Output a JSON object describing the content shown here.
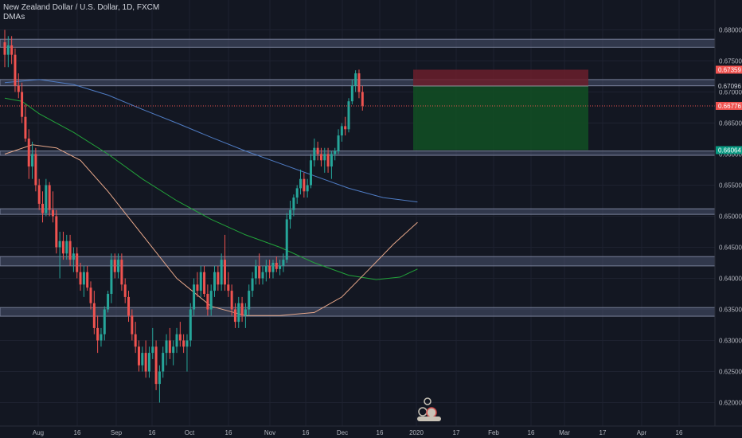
{
  "header": {
    "symbol_line": "New Zealand Dollar / U.S. Dollar, 1D, FXCM",
    "indicator": "DMAs"
  },
  "colors": {
    "background": "#131722",
    "up": "#26a69a",
    "down": "#ef5350",
    "zone_fill": "#4a5470",
    "zone_border": "#8d95b0",
    "ma200": "#4f7cc4",
    "ma100": "#22a33a",
    "ma50": "#e8a88a",
    "stop_fill": "#6b1f2c",
    "target_fill": "#124d24",
    "last_price_bg": "#ef5350",
    "target_bg": "#089981"
  },
  "chart_data": {
    "type": "candlestick",
    "ylim": [
      0.6175,
      0.6825
    ],
    "y_ticks": [
      "0.68000",
      "0.67500",
      "0.67000",
      "0.66500",
      "0.66000",
      "0.65500",
      "0.65000",
      "0.64500",
      "0.64000",
      "0.63500",
      "0.63000",
      "0.62500",
      "0.62000"
    ],
    "x_ticks": [
      "Aug",
      "16",
      "Sep",
      "16",
      "Oct",
      "16",
      "Nov",
      "16",
      "Dec",
      "16",
      "2020",
      "17",
      "Feb",
      "16",
      "Mar",
      "17",
      "Apr",
      "16"
    ],
    "price_badges": {
      "stop": "0.67359",
      "entry": "0.67096",
      "last": "0.66776",
      "target": "0.66064"
    },
    "zones": [
      [
        0.6772,
        0.6785
      ],
      [
        0.671,
        0.672
      ],
      [
        0.6598,
        0.6605
      ],
      [
        0.6503,
        0.6512
      ],
      [
        0.642,
        0.6435
      ],
      [
        0.6339,
        0.6353
      ]
    ],
    "ohlc": [
      [
        0.678,
        0.68,
        0.674,
        0.676
      ],
      [
        0.676,
        0.679,
        0.674,
        0.6775
      ],
      [
        0.6775,
        0.679,
        0.6745,
        0.676
      ],
      [
        0.676,
        0.677,
        0.67,
        0.671
      ],
      [
        0.671,
        0.673,
        0.669,
        0.67
      ],
      [
        0.67,
        0.6715,
        0.665,
        0.666
      ],
      [
        0.666,
        0.668,
        0.662,
        0.6625
      ],
      [
        0.6625,
        0.664,
        0.656,
        0.658
      ],
      [
        0.658,
        0.662,
        0.656,
        0.66
      ],
      [
        0.66,
        0.661,
        0.654,
        0.655
      ],
      [
        0.655,
        0.656,
        0.651,
        0.652
      ],
      [
        0.652,
        0.654,
        0.649,
        0.6505
      ],
      [
        0.6505,
        0.656,
        0.65,
        0.655
      ],
      [
        0.655,
        0.6555,
        0.65,
        0.651
      ],
      [
        0.651,
        0.654,
        0.649,
        0.65
      ],
      [
        0.65,
        0.651,
        0.644,
        0.645
      ],
      [
        0.645,
        0.6475,
        0.64,
        0.646
      ],
      [
        0.646,
        0.6475,
        0.643,
        0.644
      ],
      [
        0.644,
        0.647,
        0.643,
        0.646
      ],
      [
        0.646,
        0.647,
        0.642,
        0.643
      ],
      [
        0.643,
        0.645,
        0.641,
        0.644
      ],
      [
        0.644,
        0.645,
        0.64,
        0.641
      ],
      [
        0.641,
        0.6425,
        0.638,
        0.639
      ],
      [
        0.639,
        0.642,
        0.637,
        0.641
      ],
      [
        0.641,
        0.642,
        0.638,
        0.6385
      ],
      [
        0.6385,
        0.6395,
        0.635,
        0.636
      ],
      [
        0.636,
        0.638,
        0.631,
        0.632
      ],
      [
        0.632,
        0.634,
        0.628,
        0.63
      ],
      [
        0.63,
        0.632,
        0.629,
        0.631
      ],
      [
        0.631,
        0.6355,
        0.63,
        0.635
      ],
      [
        0.635,
        0.638,
        0.6345,
        0.6375
      ],
      [
        0.6375,
        0.644,
        0.636,
        0.643
      ],
      [
        0.643,
        0.644,
        0.64,
        0.641
      ],
      [
        0.641,
        0.644,
        0.64,
        0.643
      ],
      [
        0.643,
        0.644,
        0.638,
        0.639
      ],
      [
        0.639,
        0.64,
        0.636,
        0.637
      ],
      [
        0.637,
        0.638,
        0.633,
        0.634
      ],
      [
        0.634,
        0.635,
        0.63,
        0.631
      ],
      [
        0.631,
        0.633,
        0.628,
        0.629
      ],
      [
        0.629,
        0.63,
        0.625,
        0.626
      ],
      [
        0.626,
        0.629,
        0.625,
        0.628
      ],
      [
        0.628,
        0.63,
        0.624,
        0.625
      ],
      [
        0.625,
        0.629,
        0.624,
        0.628
      ],
      [
        0.628,
        0.632,
        0.627,
        0.629
      ],
      [
        0.629,
        0.63,
        0.622,
        0.623
      ],
      [
        0.623,
        0.626,
        0.62,
        0.625
      ],
      [
        0.625,
        0.629,
        0.624,
        0.628
      ],
      [
        0.628,
        0.631,
        0.626,
        0.63
      ],
      [
        0.63,
        0.632,
        0.627,
        0.628
      ],
      [
        0.628,
        0.63,
        0.626,
        0.629
      ],
      [
        0.629,
        0.632,
        0.628,
        0.631
      ],
      [
        0.631,
        0.633,
        0.629,
        0.63
      ],
      [
        0.63,
        0.631,
        0.628,
        0.629
      ],
      [
        0.629,
        0.631,
        0.625,
        0.63
      ],
      [
        0.63,
        0.636,
        0.629,
        0.635
      ],
      [
        0.635,
        0.64,
        0.634,
        0.639
      ],
      [
        0.639,
        0.641,
        0.637,
        0.638
      ],
      [
        0.638,
        0.642,
        0.637,
        0.641
      ],
      [
        0.641,
        0.642,
        0.637,
        0.6375
      ],
      [
        0.6375,
        0.639,
        0.634,
        0.635
      ],
      [
        0.635,
        0.639,
        0.634,
        0.638
      ],
      [
        0.638,
        0.642,
        0.637,
        0.641
      ],
      [
        0.641,
        0.642,
        0.638,
        0.639
      ],
      [
        0.639,
        0.644,
        0.638,
        0.643
      ],
      [
        0.643,
        0.647,
        0.638,
        0.639
      ],
      [
        0.639,
        0.641,
        0.637,
        0.638
      ],
      [
        0.638,
        0.639,
        0.634,
        0.635
      ],
      [
        0.635,
        0.636,
        0.632,
        0.633
      ],
      [
        0.633,
        0.637,
        0.632,
        0.636
      ],
      [
        0.636,
        0.637,
        0.633,
        0.634
      ],
      [
        0.634,
        0.636,
        0.632,
        0.635
      ],
      [
        0.635,
        0.639,
        0.634,
        0.638
      ],
      [
        0.638,
        0.641,
        0.637,
        0.64
      ],
      [
        0.64,
        0.643,
        0.639,
        0.642
      ],
      [
        0.642,
        0.644,
        0.639,
        0.64
      ],
      [
        0.64,
        0.642,
        0.639,
        0.641
      ],
      [
        0.641,
        0.643,
        0.6395,
        0.642
      ],
      [
        0.642,
        0.643,
        0.64,
        0.641
      ],
      [
        0.641,
        0.643,
        0.64,
        0.6425
      ],
      [
        0.6425,
        0.6435,
        0.641,
        0.6415
      ],
      [
        0.6415,
        0.643,
        0.6405,
        0.642
      ],
      [
        0.642,
        0.644,
        0.641,
        0.643
      ],
      [
        0.643,
        0.6505,
        0.6425,
        0.6495
      ],
      [
        0.6495,
        0.6525,
        0.648,
        0.651
      ],
      [
        0.651,
        0.6535,
        0.65,
        0.653
      ],
      [
        0.653,
        0.655,
        0.652,
        0.6545
      ],
      [
        0.6545,
        0.6575,
        0.6535,
        0.656
      ],
      [
        0.656,
        0.657,
        0.653,
        0.654
      ],
      [
        0.654,
        0.656,
        0.653,
        0.655
      ],
      [
        0.655,
        0.66,
        0.6545,
        0.659
      ],
      [
        0.659,
        0.6625,
        0.658,
        0.661
      ],
      [
        0.661,
        0.662,
        0.659,
        0.66
      ],
      [
        0.66,
        0.661,
        0.658,
        0.659
      ],
      [
        0.659,
        0.661,
        0.657,
        0.66
      ],
      [
        0.66,
        0.661,
        0.657,
        0.658
      ],
      [
        0.658,
        0.6605,
        0.656,
        0.66
      ],
      [
        0.66,
        0.661,
        0.659,
        0.6605
      ],
      [
        0.6605,
        0.664,
        0.66,
        0.663
      ],
      [
        0.663,
        0.665,
        0.662,
        0.6645
      ],
      [
        0.6645,
        0.666,
        0.663,
        0.664
      ],
      [
        0.664,
        0.669,
        0.6635,
        0.6685
      ],
      [
        0.6685,
        0.672,
        0.668,
        0.671
      ],
      [
        0.671,
        0.6735,
        0.67,
        0.673
      ],
      [
        0.673,
        0.6736,
        0.669,
        0.67
      ],
      [
        0.67,
        0.671,
        0.667,
        0.6678
      ]
    ],
    "ma200": [
      [
        0,
        0.6715
      ],
      [
        10,
        0.672
      ],
      [
        20,
        0.6712
      ],
      [
        30,
        0.6695
      ],
      [
        40,
        0.6672
      ],
      [
        50,
        0.665
      ],
      [
        60,
        0.6627
      ],
      [
        70,
        0.6605
      ],
      [
        80,
        0.6585
      ],
      [
        90,
        0.6565
      ],
      [
        100,
        0.6545
      ],
      [
        110,
        0.653
      ],
      [
        120,
        0.6523
      ]
    ],
    "ma100": [
      [
        0,
        0.669
      ],
      [
        5,
        0.6685
      ],
      [
        10,
        0.6665
      ],
      [
        20,
        0.6635
      ],
      [
        30,
        0.66
      ],
      [
        40,
        0.656
      ],
      [
        50,
        0.6525
      ],
      [
        60,
        0.6495
      ],
      [
        70,
        0.647
      ],
      [
        80,
        0.645
      ],
      [
        90,
        0.6425
      ],
      [
        100,
        0.6405
      ],
      [
        108,
        0.6398
      ],
      [
        115,
        0.6402
      ],
      [
        120,
        0.6415
      ]
    ],
    "ma50": [
      [
        0,
        0.66
      ],
      [
        8,
        0.6615
      ],
      [
        15,
        0.661
      ],
      [
        22,
        0.659
      ],
      [
        30,
        0.654
      ],
      [
        40,
        0.647
      ],
      [
        50,
        0.64
      ],
      [
        60,
        0.6355
      ],
      [
        70,
        0.634
      ],
      [
        80,
        0.634
      ],
      [
        90,
        0.6345
      ],
      [
        98,
        0.637
      ],
      [
        106,
        0.6415
      ],
      [
        113,
        0.6455
      ],
      [
        120,
        0.649
      ]
    ]
  }
}
